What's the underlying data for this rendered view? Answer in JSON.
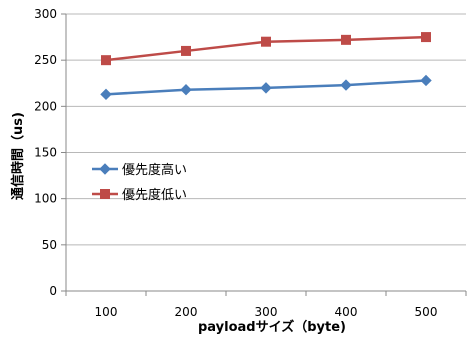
{
  "chart_data": {
    "type": "line",
    "x": [
      100,
      200,
      300,
      400,
      500
    ],
    "x_tick_labels": [
      "100",
      "200",
      "300",
      "400",
      "500"
    ],
    "y_tick_labels": [
      "0",
      "50",
      "100",
      "150",
      "200",
      "250",
      "300"
    ],
    "ylim": [
      0,
      300
    ],
    "y_step": 50,
    "xlabel": "payloadサイズ（byte)",
    "ylabel": "通信時間（us)",
    "grid": true,
    "legend_position": "left",
    "series": [
      {
        "name": "優先度高い",
        "values": [
          213,
          218,
          220,
          223,
          228
        ],
        "color": "#4a7ebb",
        "marker": "diamond"
      },
      {
        "name": "優先度低い",
        "values": [
          250,
          260,
          270,
          272,
          275
        ],
        "color": "#be4b48",
        "marker": "square"
      }
    ]
  }
}
